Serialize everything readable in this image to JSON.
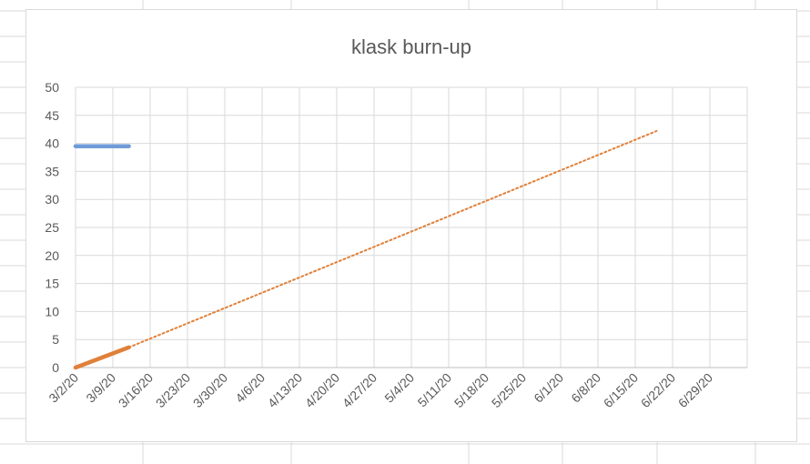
{
  "spreadsheet": {
    "gridline_color": "#d9d9d9"
  },
  "chart_data": {
    "type": "line",
    "title": "klask burn-up",
    "xlabel": "",
    "ylabel": "",
    "x_ticks": [
      "3/2/20",
      "3/9/20",
      "3/16/20",
      "3/23/20",
      "3/30/20",
      "4/6/20",
      "4/13/20",
      "4/20/20",
      "4/27/20",
      "5/4/20",
      "5/11/20",
      "5/18/20",
      "5/25/20",
      "6/1/20",
      "6/8/20",
      "6/15/20",
      "6/22/20",
      "6/29/20"
    ],
    "y_ticks": [
      0,
      5,
      10,
      15,
      20,
      25,
      30,
      35,
      40,
      45,
      50
    ],
    "ylim": [
      0,
      50
    ],
    "xlim": [
      "2020-03-02",
      "2020-07-06"
    ],
    "grid": true,
    "series": [
      {
        "color": "#6f9bd8",
        "style": "solid",
        "points": [
          {
            "x": "2020-03-02",
            "y": 39.5
          },
          {
            "x": "2020-03-12",
            "y": 39.5
          }
        ]
      },
      {
        "color": "#e0803a",
        "style": "solid",
        "points": [
          {
            "x": "2020-03-02",
            "y": 0
          },
          {
            "x": "2020-03-12",
            "y": 3.6
          }
        ]
      },
      {
        "color": "#e0803a",
        "style": "dotted",
        "points": [
          {
            "x": "2020-03-12",
            "y": 3.6
          },
          {
            "x": "2020-06-19",
            "y": 42.2
          }
        ]
      }
    ]
  }
}
